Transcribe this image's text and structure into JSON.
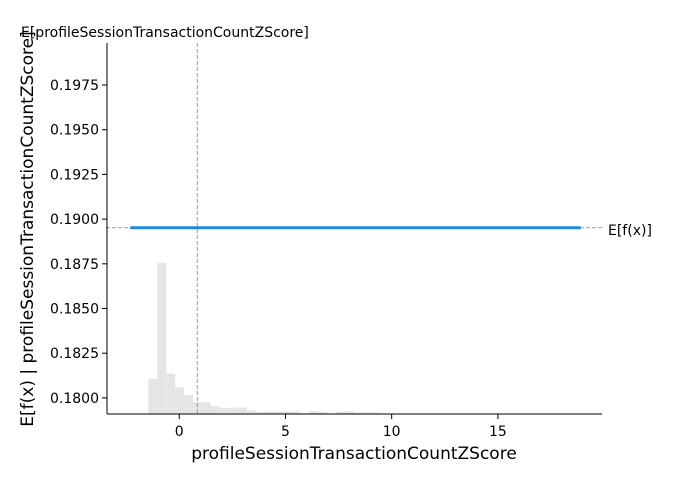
{
  "chart_data": {
    "type": "line",
    "title": "",
    "xlabel": "profileSessionTransactionCountZScore",
    "ylabel": "E[f(x) | profileSessionTransactionCountZScore]",
    "xlim": [
      -3.4,
      19.9
    ],
    "ylim": [
      0.1791,
      0.19985
    ],
    "x_ticks": [
      0,
      5,
      10,
      15
    ],
    "x_tick_labels": [
      "0",
      "5",
      "10",
      "15"
    ],
    "y_ticks": [
      0.18,
      0.1825,
      0.185,
      0.1875,
      0.19,
      0.1925,
      0.195,
      0.1975
    ],
    "y_tick_labels": [
      "0.1800",
      "0.1825",
      "0.1850",
      "0.1875",
      "0.1900",
      "0.1925",
      "0.1950",
      "0.1975"
    ],
    "grid": false,
    "series": [
      {
        "x": [
          -2.3,
          18.9
        ],
        "y": [
          0.18952,
          0.18952
        ],
        "color": "#1e88e5"
      }
    ],
    "expected_value": {
      "y": 0.18952,
      "label": "E[f(x)]"
    },
    "mean_feature": {
      "x": 0.85,
      "label": "E[profileSessionTransactionCountZScore]"
    },
    "histogram": {
      "color": "#e5e5e5",
      "bin_width": 0.42,
      "bin_starts": [
        -1.45,
        -1.03,
        -0.61,
        -0.19,
        0.23,
        0.65,
        1.07,
        1.49,
        1.91,
        2.33,
        2.75,
        3.17,
        3.59,
        4.01,
        4.43,
        4.85,
        5.27,
        6.11,
        6.53,
        7.37,
        7.79,
        8.21,
        8.63,
        9.05
      ],
      "bar_tops": [
        0.18106,
        0.18755,
        0.18135,
        0.18059,
        0.18016,
        0.17977,
        0.17975,
        0.17953,
        0.17944,
        0.17945,
        0.17947,
        0.17931,
        0.17922,
        0.17925,
        0.17925,
        0.17925,
        0.17925,
        0.17926,
        0.17921,
        0.17923,
        0.17926,
        0.17918,
        0.17918,
        0.17918
      ]
    }
  }
}
